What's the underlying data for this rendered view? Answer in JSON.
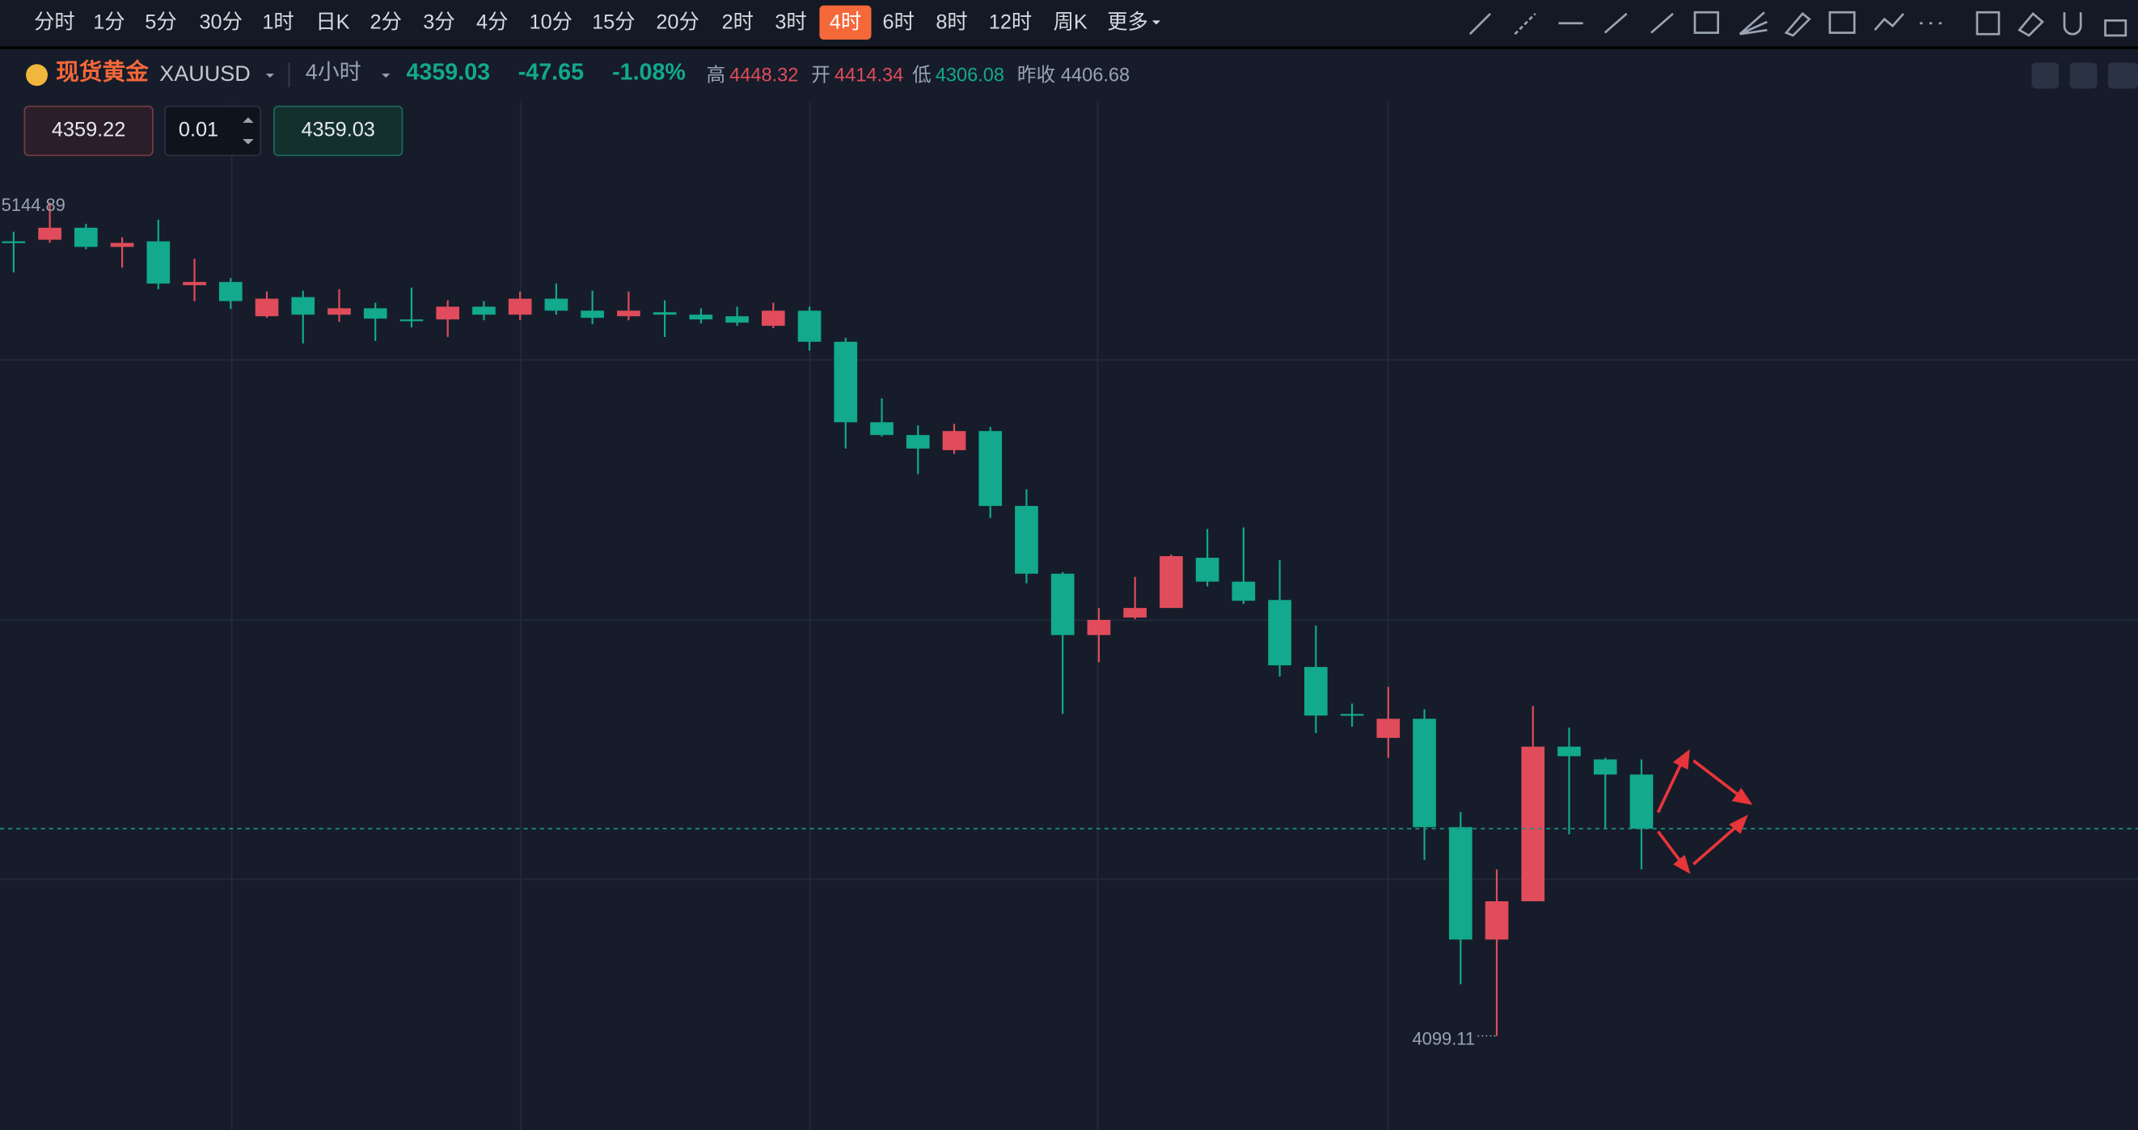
{
  "toolbar": {
    "intervals": [
      "分时",
      "1分",
      "5分",
      "30分",
      "1时",
      "日K",
      "2分",
      "3分",
      "4分",
      "10分",
      "15分",
      "20分",
      "2时",
      "3时",
      "4时",
      "6时",
      "8时",
      "12时",
      "周K",
      "更多"
    ],
    "active": 14
  },
  "header": {
    "name": "现货黄金",
    "symbol": "XAUUSD",
    "period": "4小时",
    "price": "4359.03",
    "change": "-47.65",
    "change_pct": "-1.08%",
    "high_label": "高",
    "high": "4448.32",
    "open_label": "开",
    "open": "4414.34",
    "low_label": "低",
    "low": "4306.08",
    "prev_close_label": "昨收",
    "prev_close": "4406.68"
  },
  "order": {
    "bid": "4359.22",
    "qty": "0.01",
    "ask": "4359.03"
  },
  "chart_data": {
    "type": "candlestick",
    "ylim": [
      3981.1,
      5270.45
    ],
    "up_color": "#e04c5b",
    "down_color": "#12a98c",
    "open": [
      5096,
      5098,
      5113,
      5089,
      5096,
      5041,
      5045,
      5002,
      5026,
      5004,
      5012,
      4998,
      4998,
      5014,
      5004,
      5024,
      5009,
      5002,
      5007,
      5004,
      5002,
      4990,
      5009,
      4970,
      4869,
      4853,
      4834,
      4858,
      4764,
      4679,
      4602,
      4624,
      4636,
      4699,
      4669,
      4646,
      4562,
      4503,
      4473,
      4497,
      4361,
      4220,
      4268,
      4462,
      4446,
      4427
    ],
    "high": [
      5108,
      5144.89,
      5118,
      5101,
      5123,
      5074,
      5050,
      5033,
      5034,
      5036,
      5019,
      5038,
      5022,
      5021,
      5033,
      5043,
      5034,
      5033,
      5022,
      5012,
      5014,
      5019,
      5014,
      4975,
      4899,
      4865,
      4867,
      4863,
      4785,
      4681,
      4636,
      4675,
      4703,
      4735,
      4737,
      4696,
      4614,
      4516,
      4537,
      4509,
      4380,
      4308,
      4513,
      4486,
      4448,
      4446
    ],
    "low": [
      5057,
      5094,
      5086,
      5063,
      5036,
      5021,
      5011,
      5000,
      4968,
      4995,
      4971,
      4988,
      4976,
      4997,
      4997,
      5004,
      4992,
      4997,
      4976,
      4993,
      4990,
      4987,
      4959,
      4836,
      4851,
      4804,
      4829,
      4749,
      4667,
      4503,
      4568,
      4622,
      4636,
      4663,
      4641,
      4550,
      4479,
      4487,
      4448,
      4320,
      4164,
      4099.11,
      4270,
      4352,
      4359,
      4308
    ],
    "close": [
      5096,
      5113,
      5089,
      5094,
      5043,
      5045,
      5021,
      5024,
      5004,
      5012,
      4999,
      4997,
      5014,
      5004,
      5024,
      5009,
      5000,
      5009,
      5004,
      4998,
      4994,
      5009,
      4970,
      4869,
      4853,
      4836,
      4858,
      4764,
      4679,
      4602,
      4621,
      4636,
      4701,
      4669,
      4645,
      4564,
      4501,
      4501,
      4497,
      4361,
      4220,
      4268,
      4462,
      4450,
      4427,
      4359.03
    ]
  }
}
